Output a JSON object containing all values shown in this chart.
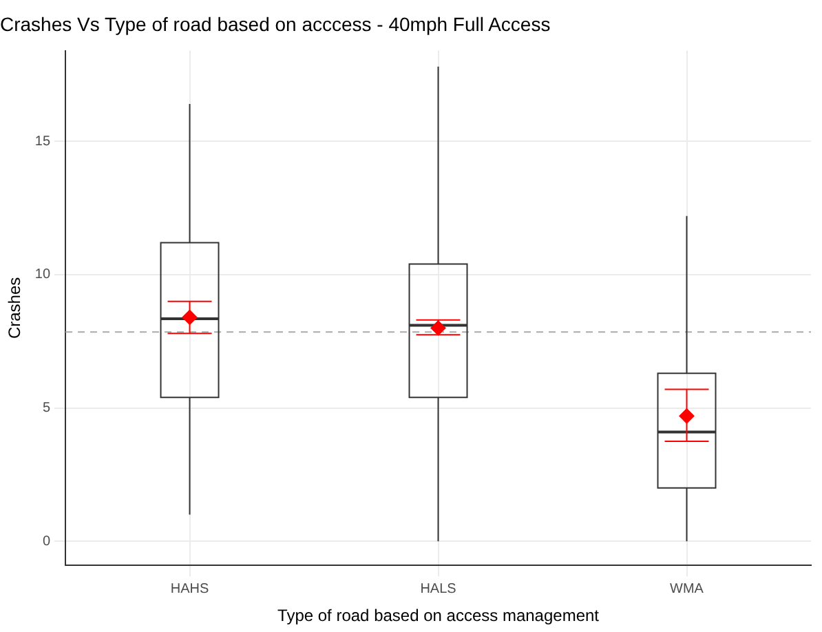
{
  "chart_data": {
    "type": "box",
    "title": "Crashes Vs Type of road based on acccess - 40mph Full Access",
    "xlabel": "Type of road based on access management",
    "ylabel": "Crashes",
    "categories": [
      "HAHS",
      "HALS",
      "WMA"
    ],
    "boxes": [
      {
        "low": 1.0,
        "q1": 5.4,
        "median": 8.35,
        "q3": 11.2,
        "high": 16.4
      },
      {
        "low": 0,
        "q1": 5.4,
        "median": 8.1,
        "q3": 10.4,
        "high": 17.8
      },
      {
        "low": 0,
        "q1": 2.0,
        "median": 4.1,
        "q3": 6.3,
        "high": 12.2
      }
    ],
    "series": [
      {
        "type": "scatter",
        "color": "#ff0000",
        "marker": "diamond",
        "x": [
          "HAHS",
          "HALS",
          "WMA"
        ],
        "values": [
          8.4,
          8.0,
          4.7
        ],
        "errors": [
          [
            7.8,
            9.0
          ],
          [
            7.75,
            8.3
          ],
          [
            3.75,
            5.7
          ]
        ]
      }
    ],
    "ref_lines": [
      {
        "axis": "y",
        "value": 7.85,
        "color": "#aaaaaa",
        "line_style": "dashed"
      }
    ],
    "ylim": [
      -0.9,
      18.4
    ],
    "yticks": [
      0,
      5,
      10,
      15
    ],
    "grid": true,
    "legend": false
  }
}
